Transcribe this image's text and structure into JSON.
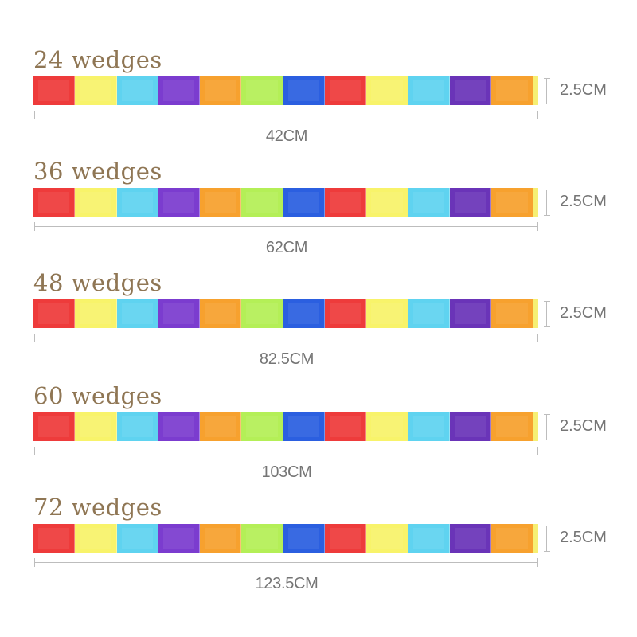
{
  "rows": [
    {
      "title": "24 wedges",
      "length": "42CM",
      "width": "2.5CM"
    },
    {
      "title": "36 wedges",
      "length": "62CM",
      "width": "2.5CM"
    },
    {
      "title": "48 wedges",
      "length": "82.5CM",
      "width": "2.5CM"
    },
    {
      "title": "60 wedges",
      "length": "103CM",
      "width": "2.5CM"
    },
    {
      "title": "72 wedges",
      "length": "123.5CM",
      "width": "2.5CM"
    }
  ],
  "colors": {
    "wedges": [
      "#ee3b3b",
      "#f8f36a",
      "#5fd3f0",
      "#7b3ccf",
      "#f7a12e",
      "#b4ef57",
      "#2b5fe0",
      "#ee3b3b",
      "#f8f36a",
      "#5fd3f0",
      "#6a34b8",
      "#f7a12e"
    ],
    "tail": "#f6ef73",
    "title": "#8f7654",
    "measure_text": "#757575",
    "measure_line": "#bdbdbd"
  }
}
